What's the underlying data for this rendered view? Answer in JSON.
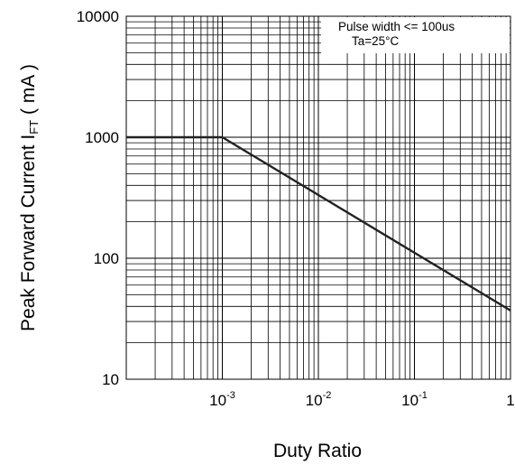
{
  "chart_data": {
    "type": "line",
    "xlabel": "Duty Ratio",
    "ylabel_main": "Peak Forward Current I",
    "ylabel_sub": "FT",
    "ylabel_tail": " ( mA )",
    "x_scale": "log",
    "y_scale": "log",
    "xlim": [
      0.0001,
      1
    ],
    "ylim": [
      10,
      10000
    ],
    "x_ticks": [
      {
        "value": 0.001,
        "base": "10",
        "exp": "-3"
      },
      {
        "value": 0.01,
        "base": "10",
        "exp": "-2"
      },
      {
        "value": 0.1,
        "base": "10",
        "exp": "-1"
      },
      {
        "value": 1,
        "base": "1",
        "exp": ""
      }
    ],
    "y_ticks": [
      {
        "value": 10,
        "label": "10"
      },
      {
        "value": 100,
        "label": "100"
      },
      {
        "value": 1000,
        "label": "1000"
      },
      {
        "value": 10000,
        "label": "10000"
      }
    ],
    "grid": true,
    "annotation": [
      "Pulse width <= 100us",
      "Ta=25°C"
    ],
    "series": [
      {
        "x": [
          0.0001,
          0.001,
          1
        ],
        "y": [
          1000,
          1000,
          37
        ]
      }
    ],
    "colors": {
      "line": "#222222",
      "grid": "#000000",
      "background": "#ffffff"
    }
  }
}
